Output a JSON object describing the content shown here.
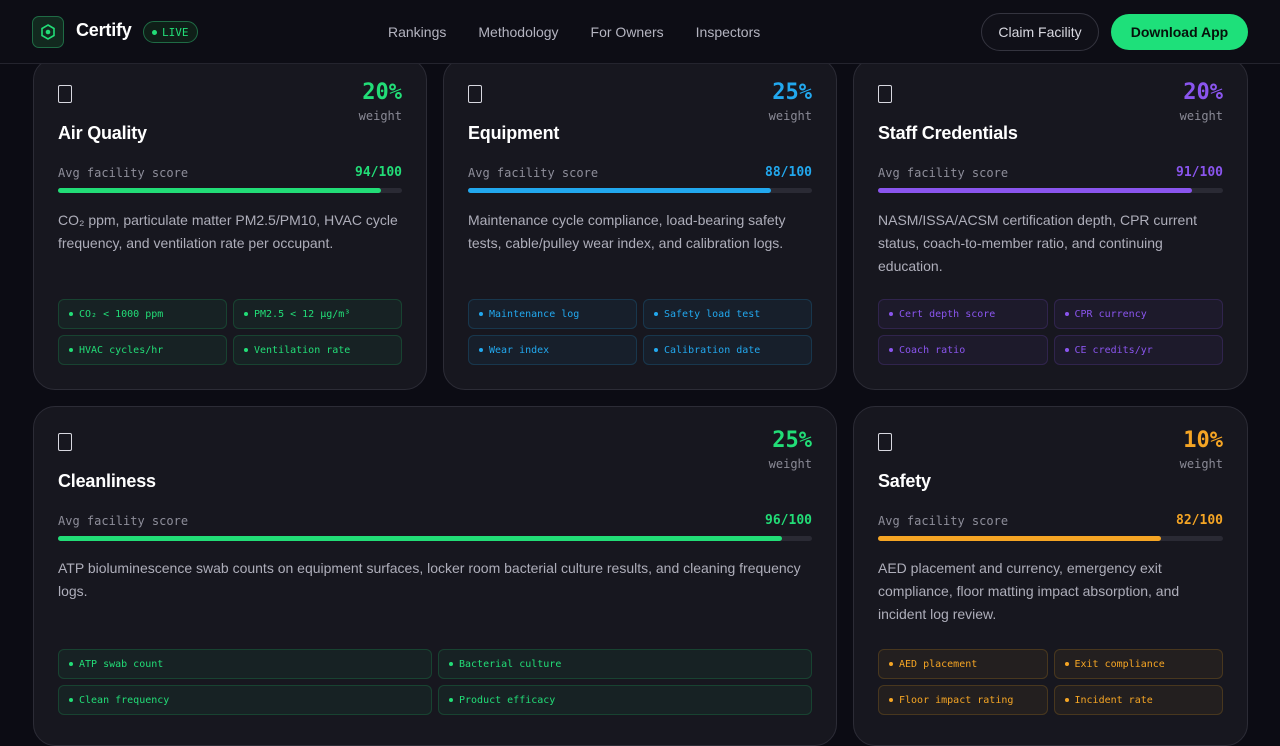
{
  "nav": {
    "brand": "Certify",
    "live": "LIVE",
    "links": [
      "Rankings",
      "Methodology",
      "For Owners",
      "Inspectors"
    ],
    "claim": "Claim Facility",
    "download": "Download App"
  },
  "cards": [
    {
      "title": "Air Quality",
      "weight": "20%",
      "weight_label": "weight",
      "score_label": "Avg facility score",
      "score": "94/100",
      "score_value": 94,
      "accent": "#22dd77",
      "description": "CO₂ ppm, particulate matter PM2.5/PM10, HVAC cycle frequency, and ventilation rate per occupant.",
      "tags": [
        "CO₂ < 1000 ppm",
        "PM2.5 < 12 μg/m³",
        "HVAC cycles/hr",
        "Ventilation rate"
      ]
    },
    {
      "title": "Equipment",
      "weight": "25%",
      "weight_label": "weight",
      "score_label": "Avg facility score",
      "score": "88/100",
      "score_value": 88,
      "accent": "#22a8ee",
      "description": "Maintenance cycle compliance, load-bearing safety tests, cable/pulley wear index, and calibration logs.",
      "tags": [
        "Maintenance log",
        "Safety load test",
        "Wear index",
        "Calibration date"
      ]
    },
    {
      "title": "Staff Credentials",
      "weight": "20%",
      "weight_label": "weight",
      "score_label": "Avg facility score",
      "score": "91/100",
      "score_value": 91,
      "accent": "#8a55ee",
      "description": "NASM/ISSA/ACSM certification depth, CPR current status, coach-to-member ratio, and continuing education.",
      "tags": [
        "Cert depth score",
        "CPR currency",
        "Coach ratio",
        "CE credits/yr"
      ]
    },
    {
      "title": "Cleanliness",
      "weight": "25%",
      "weight_label": "weight",
      "score_label": "Avg facility score",
      "score": "96/100",
      "score_value": 96,
      "accent": "#22dd77",
      "description": "ATP bioluminescence swab counts on equipment surfaces, locker room bacterial culture results, and cleaning frequency logs.",
      "tags": [
        "ATP swab count",
        "Bacterial culture",
        "Clean frequency",
        "Product efficacy"
      ]
    },
    {
      "title": "Safety",
      "weight": "10%",
      "weight_label": "weight",
      "score_label": "Avg facility score",
      "score": "82/100",
      "score_value": 82,
      "accent": "#f5a524",
      "description": "AED placement and currency, emergency exit compliance, floor matting impact absorption, and incident log review.",
      "tags": [
        "AED placement",
        "Exit compliance",
        "Floor impact rating",
        "Incident rate"
      ]
    }
  ]
}
